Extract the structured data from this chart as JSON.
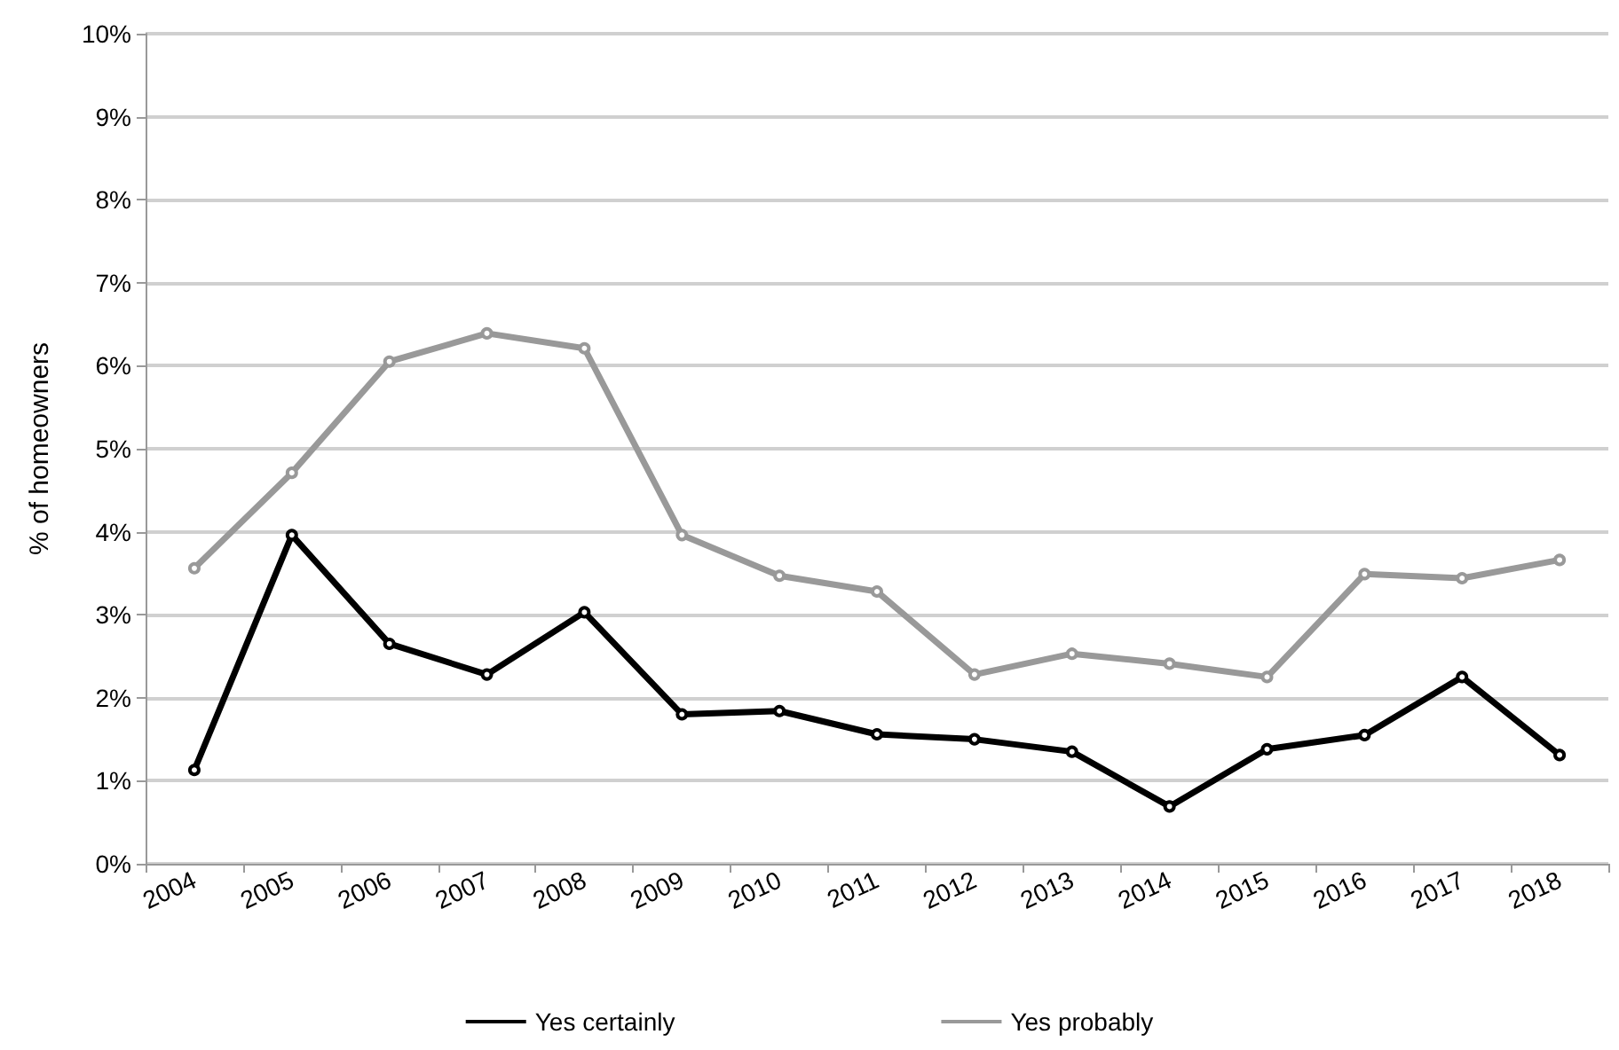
{
  "chart_data": {
    "type": "line",
    "ylabel": "% of homeowners",
    "categories": [
      "2004",
      "2005",
      "2006",
      "2007",
      "2008",
      "2009",
      "2010",
      "2011",
      "2012",
      "2013",
      "2014",
      "2015",
      "2016",
      "2017",
      "2018"
    ],
    "series": [
      {
        "name": "Yes certainly",
        "color": "#000000",
        "values": [
          1.13,
          3.96,
          2.65,
          2.28,
          3.03,
          1.8,
          1.84,
          1.56,
          1.5,
          1.35,
          0.69,
          1.38,
          1.55,
          2.25,
          1.31
        ]
      },
      {
        "name": "Yes probably",
        "color": "#999999",
        "values": [
          3.56,
          4.71,
          6.05,
          6.39,
          6.21,
          3.96,
          3.47,
          3.28,
          2.28,
          2.53,
          2.41,
          2.25,
          3.49,
          3.44,
          3.66
        ]
      }
    ],
    "ylim": [
      0,
      10
    ],
    "yticks": [
      {
        "value": 0,
        "label": "0%"
      },
      {
        "value": 1,
        "label": "1%"
      },
      {
        "value": 2,
        "label": "2%"
      },
      {
        "value": 3,
        "label": "3%"
      },
      {
        "value": 4,
        "label": "4%"
      },
      {
        "value": 5,
        "label": "5%"
      },
      {
        "value": 6,
        "label": "6%"
      },
      {
        "value": 7,
        "label": "7%"
      },
      {
        "value": 8,
        "label": "8%"
      },
      {
        "value": 9,
        "label": "9%"
      },
      {
        "value": 10,
        "label": "10%"
      }
    ],
    "grid": "y",
    "legend": "bottom",
    "marker": "circle",
    "line_style": "solid"
  }
}
